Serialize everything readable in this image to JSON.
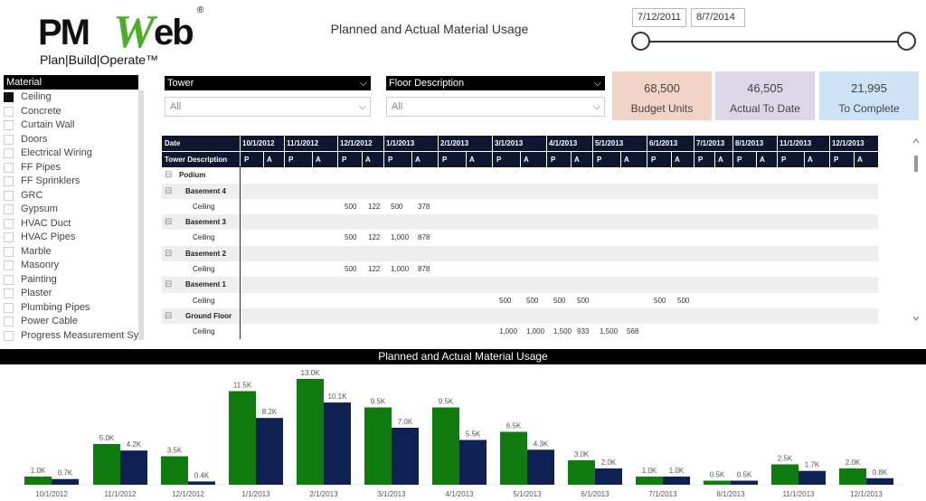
{
  "logo": {
    "brand_left": "PM",
    "brand_w": "W",
    "brand_right": "eb",
    "registered": "®",
    "tagline": "Plan|Build|Operate™"
  },
  "page_title": "Planned and Actual Material Usage",
  "date_range": {
    "start": "7/12/2011",
    "end": "8/7/2014"
  },
  "material": {
    "header": "Material",
    "items": [
      {
        "label": "Ceiling",
        "checked": true
      },
      {
        "label": "Concrete",
        "checked": false
      },
      {
        "label": "Curtain Wall",
        "checked": false
      },
      {
        "label": "Doors",
        "checked": false
      },
      {
        "label": "Electrical Wiring",
        "checked": false
      },
      {
        "label": "FF Pipes",
        "checked": false
      },
      {
        "label": "FF Sprinklers",
        "checked": false
      },
      {
        "label": "GRC",
        "checked": false
      },
      {
        "label": "Gypsum",
        "checked": false
      },
      {
        "label": "HVAC Duct",
        "checked": false
      },
      {
        "label": "HVAC Pipes",
        "checked": false
      },
      {
        "label": "Marble",
        "checked": false
      },
      {
        "label": "Masonry",
        "checked": false
      },
      {
        "label": "Painting",
        "checked": false
      },
      {
        "label": "Plaster",
        "checked": false
      },
      {
        "label": "Plumbing Pipes",
        "checked": false
      },
      {
        "label": "Power Cable",
        "checked": false
      },
      {
        "label": "Progress Measurement Sys",
        "checked": false
      }
    ]
  },
  "slicers": {
    "tower": {
      "header": "Tower",
      "value": "All"
    },
    "floor": {
      "header": "Floor Description",
      "value": "All"
    }
  },
  "kpis": [
    {
      "value": "68,500",
      "label": "Budget Units",
      "color": "#f2d3c8"
    },
    {
      "value": "46,505",
      "label": "Actual To Date",
      "color": "#dcd6e6"
    },
    {
      "value": "21,995",
      "label": "To Complete",
      "color": "#cde3f5"
    }
  ],
  "matrix": {
    "date_label": "Date",
    "tower_label": "Tower Description",
    "dates": [
      "10/1/2012",
      "11/1/2012",
      "12/1/2012",
      "1/1/2013",
      "2/1/2013",
      "3/1/2013",
      "4/1/2013",
      "5/1/2013",
      "6/1/2013",
      "7/1/2013",
      "8/1/2013",
      "11/1/2013",
      "12/1/2013"
    ],
    "p_label": "P",
    "a_label": "A",
    "rows": [
      {
        "type": "top",
        "label": "Podium",
        "expander": "⊟",
        "values": []
      },
      {
        "type": "group",
        "label": "Basement 4",
        "expander": "⊟",
        "values": []
      },
      {
        "type": "item",
        "label": "Ceiling",
        "values": [
          null,
          null,
          null,
          null,
          "500",
          "122",
          "500",
          "378",
          null,
          null,
          null,
          null,
          null,
          null,
          null,
          null,
          null,
          null,
          null,
          null,
          null,
          null,
          null,
          null,
          null,
          null
        ]
      },
      {
        "type": "group",
        "label": "Basement 3",
        "expander": "⊟",
        "values": []
      },
      {
        "type": "item",
        "label": "Ceiling",
        "values": [
          null,
          null,
          null,
          null,
          "500",
          "122",
          "1,000",
          "878",
          null,
          null,
          null,
          null,
          null,
          null,
          null,
          null,
          null,
          null,
          null,
          null,
          null,
          null,
          null,
          null,
          null,
          null
        ]
      },
      {
        "type": "group",
        "label": "Basement 2",
        "expander": "⊟",
        "values": []
      },
      {
        "type": "item",
        "label": "Ceiling",
        "values": [
          null,
          null,
          null,
          null,
          "500",
          "122",
          "1,000",
          "878",
          null,
          null,
          null,
          null,
          null,
          null,
          null,
          null,
          null,
          null,
          null,
          null,
          null,
          null,
          null,
          null,
          null,
          null
        ]
      },
      {
        "type": "group",
        "label": "Basement 1",
        "expander": "⊟",
        "values": []
      },
      {
        "type": "item",
        "label": "Ceiling",
        "values": [
          null,
          null,
          null,
          null,
          null,
          null,
          null,
          null,
          null,
          null,
          "500",
          "500",
          "500",
          "500",
          null,
          null,
          "500",
          "500",
          null,
          null,
          null,
          null,
          null,
          null,
          null,
          null
        ]
      },
      {
        "type": "group",
        "label": "Ground Floor",
        "expander": "⊟",
        "values": []
      },
      {
        "type": "item",
        "label": "Ceiling",
        "values": [
          null,
          null,
          null,
          null,
          null,
          null,
          null,
          null,
          null,
          null,
          "1,000",
          "1,000",
          "1,500",
          "933",
          "1,500",
          "568",
          null,
          null,
          null,
          null,
          null,
          null,
          null,
          null,
          null,
          null
        ]
      }
    ]
  },
  "chart_data": {
    "type": "bar",
    "title": "Planned and Actual Material Usage",
    "categories": [
      "10/1/2012",
      "11/1/2012",
      "12/1/2012",
      "1/1/2013",
      "2/1/2013",
      "3/1/2013",
      "4/1/2013",
      "5/1/2013",
      "6/1/2013",
      "7/1/2013",
      "8/1/2013",
      "11/1/2013",
      "12/1/2013"
    ],
    "series": [
      {
        "name": "Planned",
        "color": "#107c10",
        "values": [
          1000,
          5000,
          3500,
          11500,
          13000,
          9500,
          9500,
          6500,
          3000,
          1000,
          500,
          2500,
          2000
        ],
        "labels": [
          "1.0K",
          "5.0K",
          "3.5K",
          "11.5K",
          "13.0K",
          "9.5K",
          "9.5K",
          "6.5K",
          "3.0K",
          "1.0K",
          "0.5K",
          "2.5K",
          "2.0K"
        ]
      },
      {
        "name": "Actual",
        "color": "#0e2152",
        "values": [
          700,
          4200,
          400,
          8200,
          10100,
          7000,
          5500,
          4300,
          2000,
          1000,
          500,
          1700,
          800
        ],
        "labels": [
          "0.7K",
          "4.2K",
          "0.4K",
          "8.2K",
          "10.1K",
          "7.0K",
          "5.5K",
          "4.3K",
          "2.0K",
          "1.0K",
          "0.5K",
          "1.7K",
          "0.8K"
        ]
      }
    ],
    "ylim": [
      0,
      13000
    ],
    "grid": false,
    "legend": "none"
  }
}
